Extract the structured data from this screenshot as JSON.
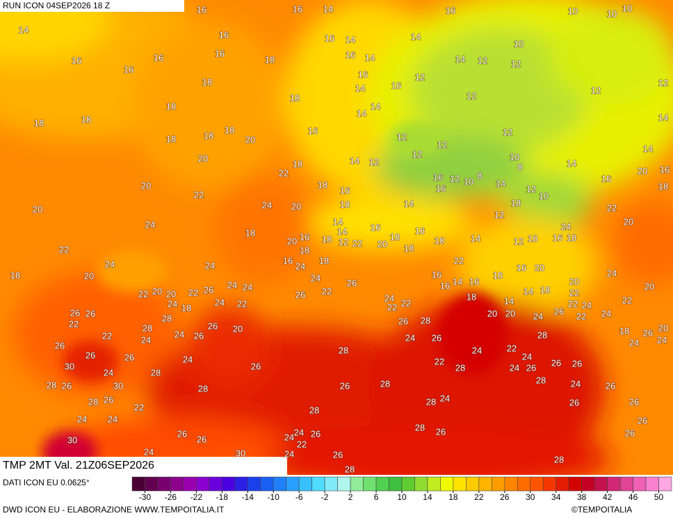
{
  "header": {
    "run": "RUN ICON 04SEP2026 18 Z"
  },
  "footer": {
    "product": "TMP 2MT Val. 21Z06SEP2026",
    "data_source": "DATI ICON EU 0.0625°",
    "credit": "DWD ICON EU - ELABORAZIONE WWW.TEMPOITALIA.IT",
    "copyright": "©TEMPOITALIA"
  },
  "colorbar": {
    "range": [
      -32,
      52
    ],
    "ticks": [
      -30,
      -26,
      -22,
      -18,
      -14,
      -10,
      -6,
      -2,
      2,
      6,
      10,
      14,
      18,
      22,
      26,
      30,
      34,
      38,
      42,
      46,
      50
    ],
    "colors": [
      "#4a0035",
      "#620050",
      "#78006e",
      "#8c008c",
      "#9a00b0",
      "#8a00cc",
      "#6a00dc",
      "#4a00e0",
      "#2a20e4",
      "#1a40ec",
      "#1a60f2",
      "#2080f8",
      "#28a0ff",
      "#38c0ff",
      "#50dcff",
      "#80ecf8",
      "#b0f6ec",
      "#90ec98",
      "#70e070",
      "#50d050",
      "#40c040",
      "#60cc30",
      "#90dc30",
      "#c0ec20",
      "#f0f800",
      "#ffe400",
      "#ffcc00",
      "#ffb400",
      "#ff9c00",
      "#ff8400",
      "#ff6c00",
      "#ff5400",
      "#f43800",
      "#e41c00",
      "#d40400",
      "#c40024",
      "#c4104c",
      "#d02874",
      "#e04494",
      "#f060b4",
      "#fc80d0",
      "#ffa8e4"
    ]
  },
  "map_labels": [
    16,
    16,
    14,
    16,
    10,
    10,
    10,
    14,
    16,
    16,
    14,
    14,
    10,
    16,
    16,
    16,
    18,
    16,
    14,
    14,
    12,
    12,
    16,
    18,
    16,
    14,
    16,
    12,
    12,
    12,
    12,
    18,
    18,
    14,
    14,
    14,
    18,
    18,
    16,
    12,
    18,
    18,
    18,
    20,
    12,
    12,
    12,
    14,
    20,
    18,
    22,
    14,
    12,
    10,
    8,
    14,
    20,
    16,
    20,
    22,
    18,
    16,
    16,
    12,
    10,
    8,
    14,
    12,
    10,
    16,
    18,
    20,
    24,
    20,
    18,
    14,
    16,
    18,
    22,
    24,
    18,
    14,
    14,
    16,
    16,
    12,
    24,
    20,
    22,
    20,
    16,
    18,
    12,
    22,
    20,
    18,
    18,
    18,
    14,
    12,
    18,
    16,
    18,
    24,
    24,
    16,
    18,
    24,
    18,
    22,
    18,
    20,
    24,
    16,
    16,
    20,
    24,
    22,
    20,
    20,
    22,
    26,
    24,
    24,
    26,
    16,
    14,
    16,
    18,
    14,
    18,
    20,
    22,
    20,
    26,
    26,
    24,
    18,
    24,
    22,
    26,
    22,
    24,
    22,
    22,
    18,
    14,
    22,
    24,
    22,
    22,
    28,
    26,
    20,
    26,
    28,
    20,
    20,
    24,
    26,
    22,
    24,
    28,
    22,
    24,
    26,
    24,
    26,
    18,
    20,
    26,
    24,
    24,
    26,
    24,
    28,
    24,
    22,
    28,
    26,
    26,
    24,
    22,
    24,
    26,
    26,
    28,
    30,
    24,
    28,
    26,
    24,
    26,
    28,
    26,
    30,
    28,
    26,
    28,
    28,
    24,
    26,
    28,
    26,
    22,
    28,
    24,
    26,
    26,
    24,
    24,
    28,
    26,
    30,
    26,
    26,
    24,
    26,
    24,
    28,
    26,
    26,
    24,
    30,
    24,
    22,
    26,
    28,
    28
  ]
}
